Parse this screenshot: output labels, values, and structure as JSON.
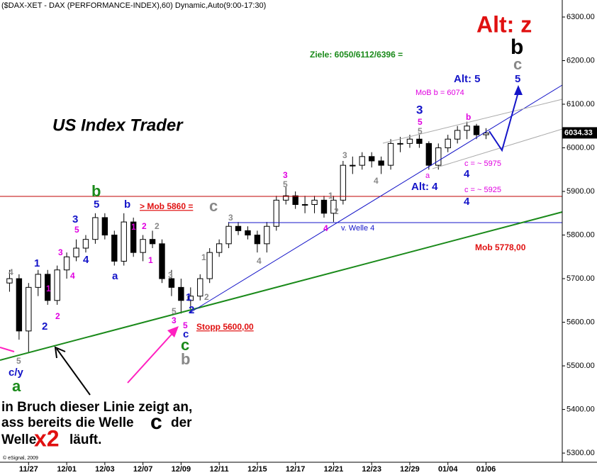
{
  "chart_data": {
    "type": "candlestick",
    "title": "($DAX-XET - DAX (PERFORMANCE-INDEX),60) Dynamic,Auto(9:00-17:30)",
    "x": [
      -2,
      -1,
      0,
      1,
      2,
      3,
      4,
      5,
      6,
      7,
      8,
      9,
      10,
      11,
      12,
      13,
      14,
      15,
      16,
      17,
      18,
      19,
      20,
      21,
      22,
      23,
      24,
      25,
      26,
      27,
      28,
      29,
      30,
      31,
      32,
      33,
      34,
      35,
      36,
      37,
      38,
      39,
      40,
      41,
      42,
      43,
      44,
      45,
      46,
      47,
      48
    ],
    "open": [
      5690,
      5700,
      5580,
      5680,
      5710,
      5650,
      5720,
      5750,
      5770,
      5790,
      5840,
      5800,
      5740,
      5830,
      5760,
      5790,
      5780,
      5700,
      5680,
      5650,
      5660,
      5700,
      5760,
      5780,
      5820,
      5810,
      5800,
      5780,
      5820,
      5880,
      5890,
      5870,
      5870,
      5880,
      5850,
      5880,
      5960,
      5960,
      5980,
      5970,
      5960,
      6010,
      6010,
      6020,
      6010,
      5960,
      6000,
      6020,
      6040,
      6050,
      6030
    ],
    "high": [
      5720,
      5710,
      5690,
      5720,
      5720,
      5730,
      5760,
      5790,
      5800,
      5850,
      5850,
      5810,
      5850,
      5840,
      5800,
      5810,
      5790,
      5720,
      5700,
      5680,
      5710,
      5770,
      5790,
      5830,
      5830,
      5820,
      5810,
      5830,
      5890,
      5910,
      5900,
      5890,
      5890,
      5890,
      5890,
      5970,
      5980,
      5990,
      5990,
      5980,
      6020,
      6025,
      6030,
      6030,
      6015,
      6010,
      6030,
      6050,
      6060,
      6055,
      6045
    ],
    "low": [
      5670,
      5560,
      5530,
      5660,
      5640,
      5640,
      5700,
      5740,
      5760,
      5780,
      5790,
      5730,
      5730,
      5750,
      5740,
      5770,
      5690,
      5660,
      5620,
      5630,
      5650,
      5690,
      5750,
      5770,
      5800,
      5790,
      5760,
      5760,
      5810,
      5870,
      5860,
      5850,
      5850,
      5840,
      5830,
      5870,
      5940,
      5950,
      5955,
      5940,
      5950,
      5990,
      6000,
      6000,
      5950,
      5950,
      5990,
      6010,
      6020,
      6020,
      6020
    ],
    "close": [
      5700,
      5580,
      5680,
      5710,
      5650,
      5720,
      5750,
      5770,
      5790,
      5840,
      5800,
      5740,
      5830,
      5760,
      5790,
      5780,
      5700,
      5680,
      5650,
      5660,
      5700,
      5760,
      5780,
      5820,
      5810,
      5800,
      5780,
      5820,
      5880,
      5890,
      5870,
      5870,
      5880,
      5850,
      5880,
      5960,
      5960,
      5980,
      5970,
      5960,
      6010,
      6010,
      6020,
      6010,
      5960,
      6000,
      6020,
      6040,
      6050,
      6030,
      6034
    ],
    "up_color": "#ffffff",
    "down_color": "#000000",
    "xlim": [
      -3,
      56
    ],
    "xticks": [
      {
        "value": 0,
        "label": "11/27"
      },
      {
        "value": 4,
        "label": "12/01"
      },
      {
        "value": 8,
        "label": "12/03"
      },
      {
        "value": 12,
        "label": "12/07"
      },
      {
        "value": 16,
        "label": "12/09"
      },
      {
        "value": 20,
        "label": "12/11"
      },
      {
        "value": 24,
        "label": "12/15"
      },
      {
        "value": 28,
        "label": "12/17"
      },
      {
        "value": 32,
        "label": "12/21"
      },
      {
        "value": 36,
        "label": "12/23"
      },
      {
        "value": 40,
        "label": "12/29"
      },
      {
        "value": 44,
        "label": "01/04"
      },
      {
        "value": 48,
        "label": "01/06"
      }
    ],
    "ylim": [
      5279,
      6339
    ],
    "yticks": [
      {
        "value": 5300,
        "label": "5300.00"
      },
      {
        "value": 5400,
        "label": "5400.00"
      },
      {
        "value": 5500,
        "label": "5500.00"
      },
      {
        "value": 5600,
        "label": "5600.00"
      },
      {
        "value": 5700,
        "label": "5700.00"
      },
      {
        "value": 5800,
        "label": "5800.00"
      },
      {
        "value": 5900,
        "label": "5900.00"
      },
      {
        "value": 6000,
        "label": "6000.00"
      },
      {
        "value": 6100,
        "label": "6100.00"
      },
      {
        "value": 6200,
        "label": "6200.00"
      },
      {
        "value": 6300,
        "label": "6300.00"
      }
    ],
    "last_price": 6034.33,
    "copyright": "© eSignal, 2009",
    "annotations": [
      "Alt: z",
      "b",
      "c",
      "5",
      "Alt: 5",
      "Ziele: 6050/6112/6396 =",
      "MoB b = 6074",
      "US Index Trader",
      "3",
      "5",
      "5",
      "b",
      "c = ~ 5975",
      "4",
      "a",
      "Alt: 4",
      "c = ~ 5925",
      "4",
      "3",
      "4",
      "3",
      "5",
      "1",
      "2",
      "3",
      "4",
      "v. Welle 4",
      "b",
      "5",
      "b",
      "> Mob 5860 =",
      "c",
      "3",
      "5",
      "2",
      "1",
      "2",
      "3",
      "4",
      "4",
      "a",
      "1",
      "Mob 5778,00",
      "1",
      "4",
      "1",
      "4",
      "3",
      "1",
      "2",
      "2",
      "1",
      "2",
      "5",
      "2",
      "3",
      "5",
      "c",
      "c",
      "b",
      "Stopp 5600,00",
      "c/y",
      "a",
      "5",
      "in Bruch dieser Linie zeigt an,",
      "ass bereits die Welle",
      "c",
      "der",
      "Welle",
      "x2",
      "läuft."
    ]
  }
}
